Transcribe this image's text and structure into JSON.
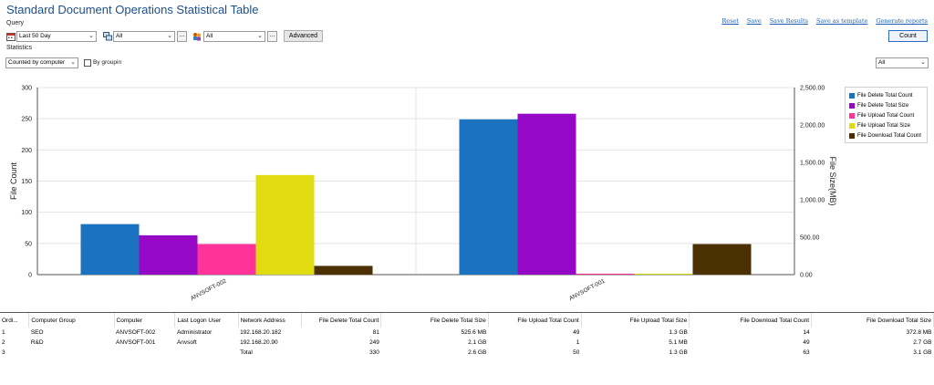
{
  "title": "Standard Document Operations Statistical Table",
  "query_label": "Query",
  "statistics_label": "Statistics",
  "links": [
    "Reset",
    "Save",
    "Save Results",
    "Save as template",
    "Generate reports"
  ],
  "query": {
    "time_range": "Last 50 Day",
    "computer": "All",
    "user": "All",
    "more": "...",
    "advanced_label": "Advanced",
    "count_label": "Count"
  },
  "statistics": {
    "mode": "Counted by computer",
    "by_grouping_label": "By groupin",
    "filter": "All"
  },
  "colors": {
    "series": [
      "#1a72c0",
      "#9508c6",
      "#ff3399",
      "#e0dc10",
      "#4a3002"
    ]
  },
  "chart_data": {
    "type": "bar",
    "categories": [
      "ANVSOFT-002",
      "ANVSOFT-001"
    ],
    "series": [
      {
        "name": "File Delete Total Count",
        "values": [
          81,
          249
        ],
        "axis": "left"
      },
      {
        "name": "File Delete Total Size",
        "values": [
          525.6,
          2150.4
        ],
        "axis": "right"
      },
      {
        "name": "File Upload Total Count",
        "values": [
          49,
          1
        ],
        "axis": "left"
      },
      {
        "name": "File Upload Total Size",
        "values": [
          1331.2,
          5.1
        ],
        "axis": "right"
      },
      {
        "name": "File Download Total Count",
        "values": [
          14,
          49
        ],
        "axis": "left"
      }
    ],
    "ylabel": "File Count",
    "ylim": [
      0,
      300
    ],
    "yticks": [
      "0",
      "50",
      "100",
      "150",
      "200",
      "250",
      "300"
    ],
    "y2label": "File Size(MB)",
    "y2lim": [
      0,
      2500
    ],
    "y2ticks": [
      "0.00",
      "500.00",
      "1,000.00",
      "1,500.00",
      "2,000.00",
      "2,500.00"
    ],
    "grid": true,
    "legend": "top-right"
  },
  "table": {
    "columns": [
      "Ordi...",
      "Computer Group",
      "Computer",
      "Last Logon User",
      "Network Address",
      "File Delete Total Count",
      "File Delete Total Size",
      "File Upload Total Count",
      "File Upload Total Size",
      "File Download Total Count",
      "File Download Total Size"
    ],
    "rows": [
      [
        "1",
        "SEO",
        "ANVSOFT-002",
        "Administrator",
        "192.168.20.182",
        "81",
        "525.6 MB",
        "49",
        "1.3 GB",
        "14",
        "372.8 MB"
      ],
      [
        "2",
        "R&D",
        "ANVSOFT-001",
        "Anvsoft",
        "192.168.20.90",
        "249",
        "2.1 GB",
        "1",
        "5.1 MB",
        "49",
        "2.7 GB"
      ],
      [
        "3",
        "",
        "",
        "",
        "Total",
        "330",
        "2.6 GB",
        "50",
        "1.3 GB",
        "63",
        "3.1 GB"
      ]
    ]
  }
}
